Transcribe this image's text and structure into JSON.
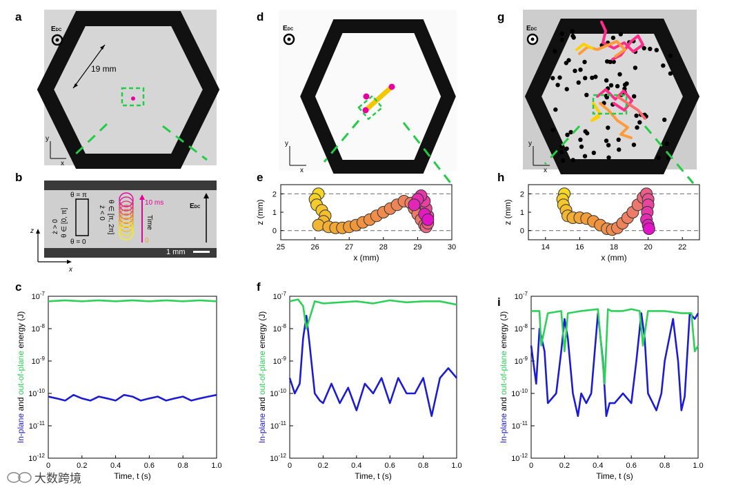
{
  "panel_labels": [
    "a",
    "b",
    "c",
    "d",
    "e",
    "f",
    "g",
    "h",
    "i"
  ],
  "edc_label": "E",
  "edc_sub": "DC",
  "dimension_label": "19 mm",
  "axis_x": "x",
  "axis_y": "y",
  "axis_z": "z",
  "panel_b": {
    "theta_pi": "θ = π",
    "theta_zero": "θ = 0",
    "zdot_pos": "ż > 0",
    "zdot_neg": "ż < 0",
    "range_pos": "θ ∈ [0, π]",
    "range_neg": "θ ∈ [π, 2π]",
    "time_label": "Time",
    "time_end": "10 ms",
    "time_start": "0",
    "scale_bar": "1 mm"
  },
  "energy_ylabel": {
    "inplane": "In-plane",
    "and": " and ",
    "outplane": "out-of-plane",
    "rest": " energy (J)"
  },
  "colors": {
    "inplane": "#1b1bd4",
    "outplane": "#2ed157",
    "dashed_green": "#22cc44",
    "pink": "#e8009c",
    "frame": "#111111"
  },
  "chart_data": [
    {
      "id": "e",
      "type": "scatter",
      "xlabel": "x (mm)",
      "ylabel": "z (mm)",
      "xlim": [
        25,
        30
      ],
      "ylim": [
        -0.5,
        2.5
      ],
      "xticks": [
        25,
        26,
        27,
        28,
        29,
        30
      ],
      "yticks": [
        0,
        1,
        2
      ],
      "dashed_lines": [
        0,
        2
      ],
      "x": [
        26.1,
        26.0,
        26.05,
        26.2,
        26.3,
        26.25,
        26.1,
        26.4,
        26.6,
        26.8,
        27.0,
        27.2,
        27.4,
        27.6,
        27.8,
        28.0,
        28.2,
        28.4,
        28.6,
        28.8,
        28.9,
        29.0,
        29.1,
        29.2,
        29.25,
        29.3,
        29.3,
        29.25,
        29.2,
        29.1,
        29.0,
        28.9,
        29.2,
        29.3
      ],
      "y": [
        2.0,
        1.7,
        1.4,
        1.1,
        0.8,
        0.5,
        0.3,
        0.2,
        0.15,
        0.15,
        0.2,
        0.3,
        0.45,
        0.6,
        0.8,
        1.0,
        1.2,
        1.4,
        1.6,
        1.5,
        1.2,
        0.9,
        0.6,
        0.3,
        0.2,
        0.4,
        0.8,
        1.2,
        1.6,
        1.9,
        1.7,
        1.4,
        0.9,
        0.6
      ]
    },
    {
      "id": "h",
      "type": "scatter",
      "xlabel": "x (mm)",
      "ylabel": "z (mm)",
      "xlim": [
        13,
        23
      ],
      "ylim": [
        -0.5,
        2.5
      ],
      "xticks": [
        14,
        16,
        18,
        20,
        22
      ],
      "yticks": [
        0,
        1,
        2
      ],
      "dashed_lines": [
        0,
        2
      ],
      "x": [
        15.1,
        15.0,
        15.05,
        15.2,
        15.3,
        15.6,
        16.0,
        16.4,
        16.8,
        17.2,
        17.6,
        17.9,
        18.2,
        18.5,
        18.8,
        19.1,
        19.4,
        19.7,
        19.9,
        20.0,
        20.0,
        19.95,
        19.9,
        20.0,
        20.05
      ],
      "y": [
        2.0,
        1.7,
        1.4,
        1.1,
        0.8,
        0.7,
        0.7,
        0.65,
        0.5,
        0.3,
        0.1,
        0.05,
        0.15,
        0.4,
        0.7,
        1.0,
        1.4,
        1.8,
        2.0,
        1.7,
        1.4,
        1.0,
        0.6,
        0.3,
        0.1
      ]
    },
    {
      "id": "c",
      "type": "line",
      "xlabel": "Time, t (s)",
      "xlim": [
        0,
        1
      ],
      "xticks": [
        0,
        0.2,
        0.4,
        0.6,
        0.8,
        1.0
      ],
      "ylim_log10": [
        -12,
        -7
      ],
      "ytick_labels": [
        "10-7",
        "10-8",
        "10-9",
        "10-10",
        "10-11",
        "10-12"
      ],
      "series": [
        {
          "name": "In-plane",
          "t": [
            0,
            0.05,
            0.1,
            0.15,
            0.2,
            0.25,
            0.3,
            0.35,
            0.4,
            0.45,
            0.5,
            0.55,
            0.6,
            0.65,
            0.7,
            0.75,
            0.8,
            0.85,
            0.9,
            0.95,
            1.0
          ],
          "values": [
            8e-11,
            7e-11,
            6e-11,
            9e-11,
            7e-11,
            6e-11,
            8e-11,
            7e-11,
            6e-11,
            9e-11,
            8e-11,
            6e-11,
            7e-11,
            8e-11,
            6e-11,
            7e-11,
            8e-11,
            6e-11,
            7e-11,
            8e-11,
            9e-11
          ]
        },
        {
          "name": "Out-of-plane",
          "t": [
            0,
            0.1,
            0.2,
            0.3,
            0.4,
            0.5,
            0.6,
            0.7,
            0.8,
            0.9,
            1.0
          ],
          "values": [
            7e-08,
            7.5e-08,
            7e-08,
            7.5e-08,
            7e-08,
            7.5e-08,
            7e-08,
            7.5e-08,
            7e-08,
            7.5e-08,
            7e-08
          ]
        }
      ]
    },
    {
      "id": "f",
      "type": "line",
      "xlabel": "Time, t (s)",
      "xlim": [
        0,
        1
      ],
      "xticks": [
        0,
        0.2,
        0.4,
        0.6,
        0.8,
        1.0
      ],
      "ylim_log10": [
        -12,
        -7
      ],
      "ytick_labels": [
        "10-7",
        "10-8",
        "10-9",
        "10-10",
        "10-11",
        "10-12"
      ],
      "series": [
        {
          "name": "In-plane",
          "t": [
            0,
            0.03,
            0.06,
            0.08,
            0.1,
            0.12,
            0.15,
            0.18,
            0.2,
            0.25,
            0.3,
            0.35,
            0.4,
            0.45,
            0.5,
            0.55,
            0.6,
            0.65,
            0.7,
            0.75,
            0.8,
            0.85,
            0.9,
            0.95,
            1.0
          ],
          "values": [
            3e-10,
            1e-10,
            2e-10,
            5e-09,
            2.5e-08,
            3e-09,
            1e-10,
            6e-11,
            5e-11,
            2e-10,
            5e-11,
            1.5e-10,
            3e-11,
            2e-10,
            1e-10,
            3e-10,
            5e-11,
            3e-10,
            1e-10,
            1e-10,
            3e-10,
            2e-11,
            3e-10,
            6e-10,
            3e-10
          ]
        },
        {
          "name": "Out-of-plane",
          "t": [
            0,
            0.05,
            0.08,
            0.1,
            0.15,
            0.2,
            0.3,
            0.4,
            0.5,
            0.6,
            0.7,
            0.8,
            0.9,
            1.0
          ],
          "values": [
            7e-08,
            8e-08,
            5e-08,
            1e-08,
            7e-08,
            6e-08,
            6.5e-08,
            7e-08,
            6e-08,
            7.5e-08,
            6.5e-08,
            7e-08,
            7e-08,
            5.5e-08
          ]
        }
      ]
    },
    {
      "id": "i",
      "type": "line",
      "xlabel": "Time, t (s)",
      "xlim": [
        0,
        1
      ],
      "xticks": [
        0,
        0.2,
        0.4,
        0.6,
        0.8,
        1.0
      ],
      "ylim_log10": [
        -12,
        -7
      ],
      "ytick_labels": [
        "10-7",
        "10-8",
        "10-9",
        "10-10",
        "10-11",
        "10-12"
      ],
      "series": [
        {
          "name": "In-plane",
          "t": [
            0,
            0.03,
            0.05,
            0.08,
            0.1,
            0.15,
            0.18,
            0.2,
            0.22,
            0.25,
            0.28,
            0.3,
            0.33,
            0.36,
            0.4,
            0.43,
            0.45,
            0.47,
            0.5,
            0.55,
            0.6,
            0.63,
            0.66,
            0.68,
            0.7,
            0.75,
            0.78,
            0.8,
            0.85,
            0.88,
            0.9,
            0.92,
            0.95,
            0.98,
            1.0
          ],
          "values": [
            3e-09,
            2e-10,
            1e-08,
            2e-09,
            5e-11,
            1e-10,
            2e-09,
            2e-08,
            5e-09,
            1e-10,
            2e-11,
            1e-10,
            5e-11,
            1e-10,
            3e-08,
            1e-09,
            2e-11,
            5e-11,
            5e-11,
            1e-10,
            5e-11,
            1e-09,
            3e-08,
            5e-09,
            1e-10,
            3e-11,
            1e-10,
            1e-09,
            2e-08,
            1e-09,
            3e-11,
            8e-11,
            3e-08,
            2e-08,
            3e-08
          ]
        },
        {
          "name": "Out-of-plane",
          "t": [
            0,
            0.05,
            0.06,
            0.1,
            0.18,
            0.2,
            0.22,
            0.3,
            0.4,
            0.44,
            0.46,
            0.48,
            0.55,
            0.6,
            0.65,
            0.67,
            0.7,
            0.8,
            0.9,
            0.96,
            0.98,
            1.0
          ],
          "values": [
            3.5e-08,
            3.5e-08,
            3e-09,
            3e-08,
            3.5e-08,
            2e-09,
            3e-08,
            3.5e-08,
            4e-08,
            2e-10,
            4e-08,
            3.5e-08,
            3.5e-08,
            4e-08,
            3.5e-08,
            3e-09,
            3.5e-08,
            3.5e-08,
            3e-08,
            3e-08,
            2e-09,
            3e-09
          ]
        }
      ]
    }
  ],
  "watermark": "大数跨境"
}
